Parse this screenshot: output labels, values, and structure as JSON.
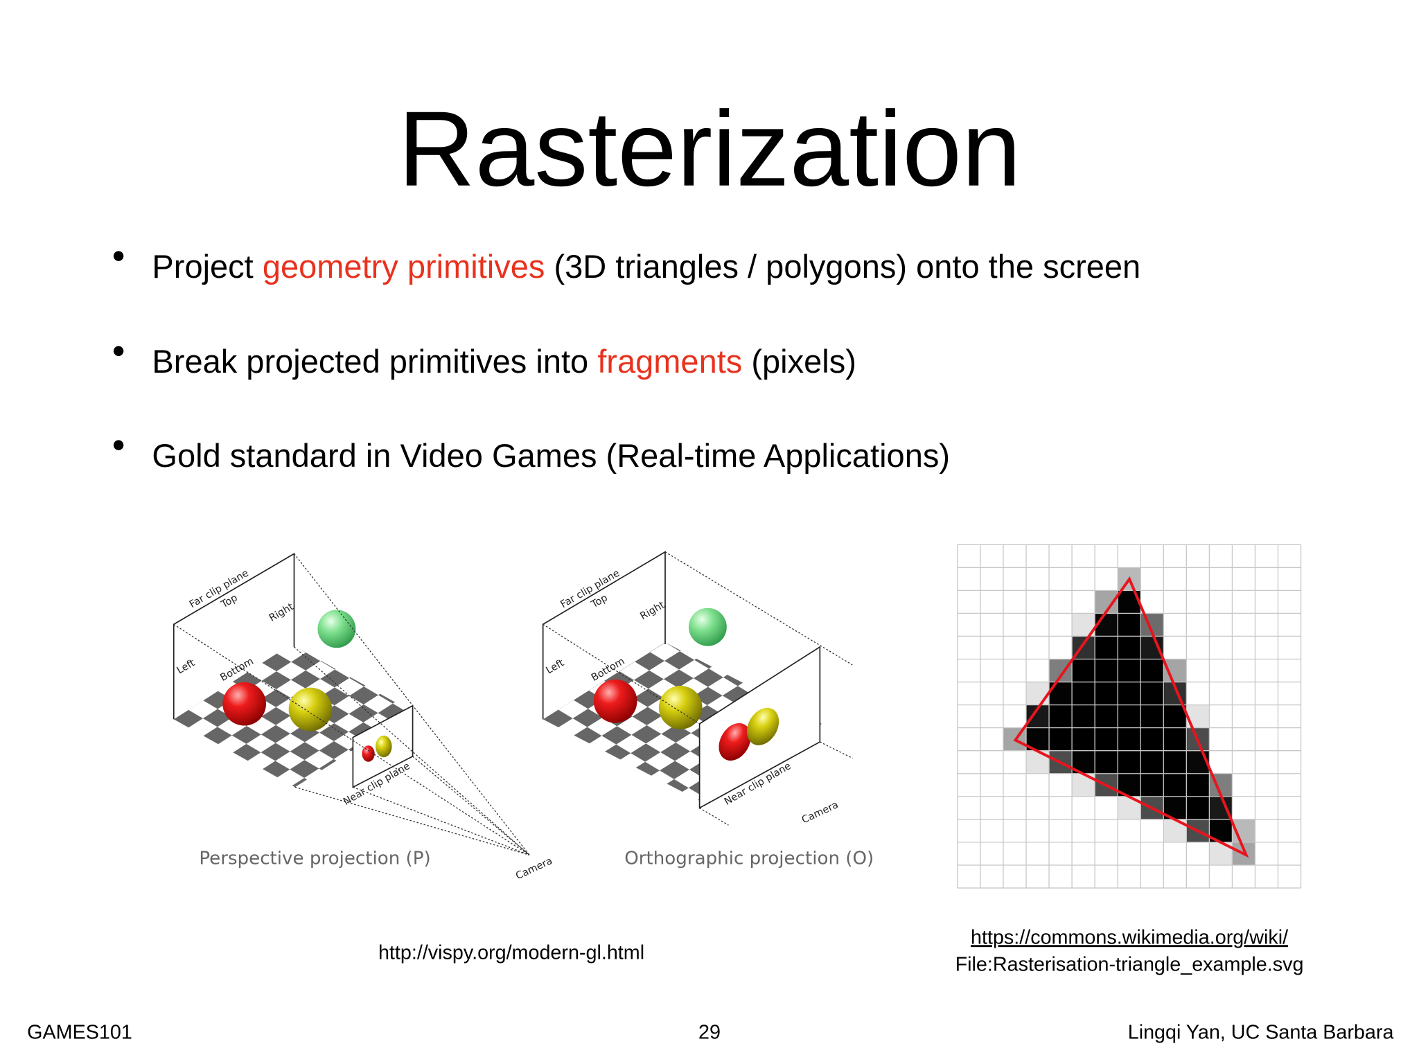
{
  "title": "Rasterization",
  "bullets": [
    [
      {
        "text": "Project ",
        "color": "#000000"
      },
      {
        "text": "geometry primitives",
        "color": "#e8321e"
      },
      {
        "text": " (3D triangles / polygons) onto the screen",
        "color": "#000000"
      }
    ],
    [
      {
        "text": "Break projected primitives into ",
        "color": "#000000"
      },
      {
        "text": "fragments",
        "color": "#e8321e"
      },
      {
        "text": " (pixels)",
        "color": "#000000"
      }
    ],
    [
      {
        "text": "Gold standard in Video Games (Real-time Applications)",
        "color": "#000000"
      }
    ]
  ],
  "figures": [
    {
      "far": "Far clip plane",
      "top": "Top",
      "right": "Right",
      "left": "Left",
      "bottom": "Bottom",
      "near": "Near clip plane",
      "camera": "Camera",
      "caption": "Perspective projection (P)"
    },
    {
      "far": "Far clip plane",
      "top": "Top",
      "right": "Right",
      "left": "Left",
      "bottom": "Bottom",
      "near": "Near clip plane",
      "camera": "Camera",
      "caption": "Orthographic projection (O)"
    }
  ],
  "credits": {
    "vispy": "http://vispy.org/modern-gl.html",
    "wiki_link": "https://commons.wikimedia.org/wiki/",
    "wiki_file": "File:Rasterisation-triangle_example.svg"
  },
  "footer": {
    "left": "GAMES101",
    "page": 29,
    "right": "Lingqi Yan, UC Santa Barbara"
  }
}
